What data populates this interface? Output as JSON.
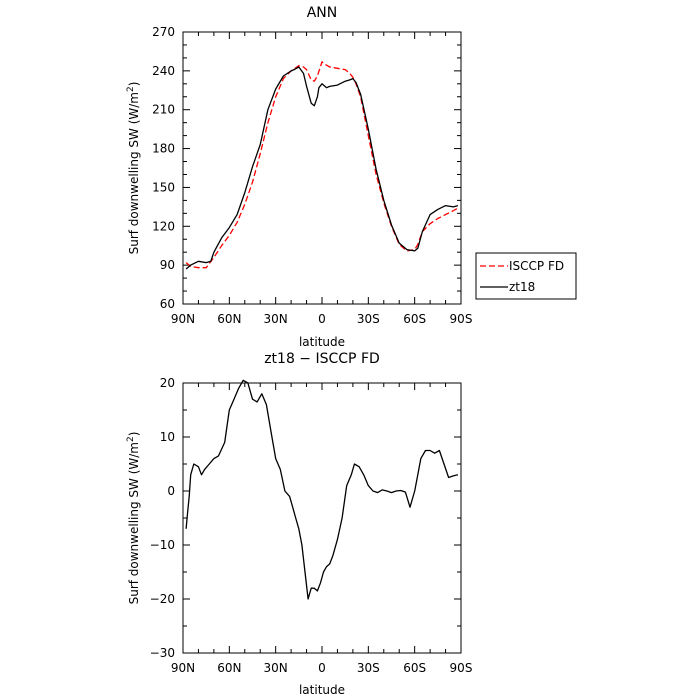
{
  "chart_data": [
    {
      "type": "line",
      "title": "ANN",
      "xlabel": "latitude",
      "ylabel": "Surf downwelling SW (W/m",
      "ylabel_sup": "2",
      "ylabel_close": ")",
      "xlim": [
        90,
        -90
      ],
      "ylim": [
        60,
        270
      ],
      "xticks": [
        90,
        60,
        30,
        0,
        -30,
        -60,
        -90
      ],
      "xtick_labels": [
        "90N",
        "60N",
        "30N",
        "0",
        "30S",
        "60S",
        "90S"
      ],
      "yticks": [
        60,
        90,
        120,
        150,
        180,
        210,
        240,
        270
      ],
      "ytick_labels": [
        "60",
        "90",
        "120",
        "150",
        "180",
        "210",
        "240",
        "270"
      ],
      "legend": "outside-right",
      "series": [
        {
          "name": "ISCCP FD",
          "color": "#ff0000",
          "dash": "dashed",
          "x": [
            88,
            85,
            80,
            75,
            70,
            65,
            60,
            55,
            50,
            45,
            40,
            35,
            30,
            25,
            20,
            15,
            12,
            10,
            7,
            5,
            3,
            0,
            -2,
            -5,
            -10,
            -15,
            -18,
            -20,
            -22,
            -25,
            -30,
            -35,
            -40,
            -45,
            -50,
            -55,
            -60,
            -62,
            -65,
            -70,
            -75,
            -80,
            -85,
            -88
          ],
          "y": [
            92,
            89,
            88,
            88,
            96,
            105,
            113,
            123,
            137,
            154,
            176,
            200,
            220,
            234,
            240,
            244,
            243,
            241,
            233,
            232,
            236,
            247,
            245,
            243,
            242,
            241,
            238,
            235,
            230,
            220,
            190,
            160,
            138,
            120,
            106,
            101,
            102,
            106,
            116,
            122,
            126,
            129,
            132,
            134
          ]
        },
        {
          "name": "zt18",
          "color": "#000000",
          "dash": "solid",
          "x": [
            88,
            85,
            80,
            75,
            72,
            70,
            65,
            60,
            55,
            50,
            45,
            40,
            35,
            30,
            25,
            20,
            18,
            15,
            12,
            10,
            7,
            5,
            3,
            2,
            0,
            -3,
            -5,
            -10,
            -15,
            -18,
            -20,
            -22,
            -25,
            -30,
            -35,
            -40,
            -45,
            -50,
            -55,
            -60,
            -62,
            -65,
            -70,
            -75,
            -80,
            -85,
            -88
          ],
          "y": [
            87,
            90,
            93,
            92,
            93,
            100,
            111,
            119,
            129,
            146,
            166,
            183,
            210,
            226,
            236,
            240,
            241,
            243,
            238,
            228,
            215,
            213,
            220,
            227,
            230,
            227,
            228,
            229,
            232,
            233,
            234,
            231,
            222,
            195,
            164,
            140,
            121,
            107,
            102,
            101,
            103,
            116,
            129,
            133,
            136,
            135,
            136
          ]
        }
      ]
    },
    {
      "type": "line",
      "title": "zt18 − ISCCP FD",
      "xlabel": "latitude",
      "ylabel": "Surf downwelling SW (W/m",
      "ylabel_sup": "2",
      "ylabel_close": ")",
      "xlim": [
        90,
        -90
      ],
      "ylim": [
        -30,
        20
      ],
      "xticks": [
        90,
        60,
        30,
        0,
        -30,
        -60,
        -90
      ],
      "xtick_labels": [
        "90N",
        "60N",
        "30N",
        "0",
        "30S",
        "60S",
        "90S"
      ],
      "yticks": [
        -30,
        -20,
        -10,
        0,
        10,
        20
      ],
      "ytick_labels": [
        "−30",
        "−20",
        "−10",
        "0",
        "10",
        "20"
      ],
      "series": [
        {
          "name": "",
          "color": "#000000",
          "dash": "solid",
          "x": [
            88,
            87,
            86,
            85,
            83,
            80,
            78,
            76,
            73,
            70,
            67,
            63,
            60,
            57,
            54,
            51,
            48,
            45,
            42,
            39,
            36,
            33,
            30,
            27,
            24,
            21,
            19,
            17,
            15,
            13,
            11,
            9,
            7,
            5,
            3,
            1,
            -1,
            -3,
            -5,
            -7,
            -10,
            -13,
            -16,
            -19,
            -21,
            -24,
            -27,
            -30,
            -33,
            -36,
            -39,
            -42,
            -45,
            -48,
            -51,
            -54,
            -57,
            -60,
            -62,
            -64,
            -67,
            -70,
            -73,
            -76,
            -79,
            -82,
            -85,
            -88
          ],
          "y": [
            -7,
            -4,
            -1,
            3,
            5,
            4.5,
            3,
            4,
            5,
            6,
            6.5,
            9,
            15,
            17,
            19,
            20.5,
            20,
            17,
            16.5,
            18,
            16,
            11,
            6,
            4,
            0,
            -1,
            -3,
            -5,
            -7,
            -10,
            -15,
            -20,
            -18,
            -18,
            -18.5,
            -17,
            -15,
            -14,
            -13.5,
            -12,
            -9,
            -5,
            1,
            3,
            5,
            4.5,
            3,
            1,
            0,
            -0.3,
            0.2,
            0,
            -0.3,
            0,
            0.1,
            -0.2,
            -3,
            0,
            3,
            6,
            7.5,
            7.5,
            7,
            7.5,
            5,
            2.5,
            2.8,
            3
          ]
        }
      ]
    }
  ]
}
